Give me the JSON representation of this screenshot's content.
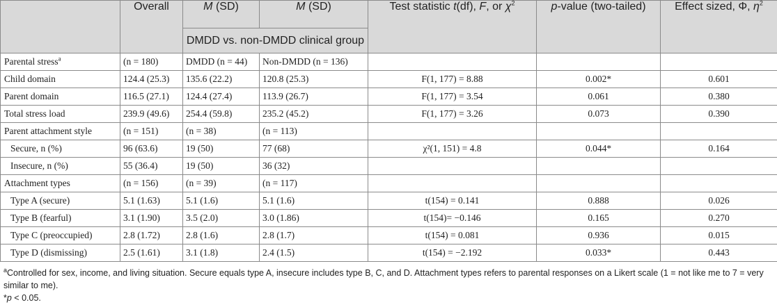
{
  "header": {
    "overall": "Overall",
    "m_sd_1_m": "M",
    "m_sd_1_rest": " (SD)",
    "m_sd_2_m": "M",
    "m_sd_2_rest": " (SD)",
    "test_stat_a": "Test statistic ",
    "test_stat_t": "t",
    "test_stat_b": "(df), ",
    "test_stat_f": "F",
    "test_stat_c": ", or ",
    "test_stat_chi": "χ",
    "test_stat_sup": "2",
    "pvalue_p": "p",
    "pvalue_rest": "-value (two-tailed)",
    "effect_a": "Effect sized, Φ, ",
    "effect_eta": "η",
    "effect_sup": "2",
    "group_label": "DMDD vs. non-DMDD clinical group"
  },
  "rows": [
    {
      "label": "Parental stress",
      "label_sup": "a",
      "indent": false,
      "overall": "(n = 180)",
      "dmdd": "DMDD (n = 44)",
      "non": "Non-DMDD (n = 136)",
      "stat": "",
      "p": "",
      "eff": ""
    },
    {
      "label": "Child domain",
      "label_sup": "",
      "indent": false,
      "overall": "124.4 (25.3)",
      "dmdd": "135.6 (22.2)",
      "non": "120.8 (25.3)",
      "stat": "F(1, 177) = 8.88",
      "p": "0.002*",
      "eff": "0.601"
    },
    {
      "label": "Parent domain",
      "label_sup": "",
      "indent": false,
      "overall": "116.5 (27.1)",
      "dmdd": "124.4 (27.4)",
      "non": "113.9 (26.7)",
      "stat": "F(1, 177) = 3.54",
      "p": "0.061",
      "eff": "0.380"
    },
    {
      "label": "Total stress load",
      "label_sup": "",
      "indent": false,
      "overall": "239.9 (49.6)",
      "dmdd": "254.4 (59.8)",
      "non": "235.2 (45.2)",
      "stat": "F(1, 177) = 3.26",
      "p": "0.073",
      "eff": "0.390"
    },
    {
      "label": "Parent attachment style",
      "label_sup": "",
      "indent": false,
      "overall": "(n = 151)",
      "dmdd": "(n = 38)",
      "non": "(n = 113)",
      "stat": "",
      "p": "",
      "eff": ""
    },
    {
      "label": "Secure, n (%)",
      "label_sup": "",
      "indent": true,
      "overall": "96 (63.6)",
      "dmdd": "19 (50)",
      "non": "77 (68)",
      "stat": "χ²(1, 151) = 4.8",
      "p": "0.044*",
      "eff": "0.164"
    },
    {
      "label": "Insecure, n (%)",
      "label_sup": "",
      "indent": true,
      "overall": "55 (36.4)",
      "dmdd": "19 (50)",
      "non": "36 (32)",
      "stat": "",
      "p": "",
      "eff": ""
    },
    {
      "label": "Attachment types",
      "label_sup": "",
      "indent": false,
      "overall": "(n = 156)",
      "dmdd": "(n = 39)",
      "non": "(n = 117)",
      "stat": "",
      "p": "",
      "eff": ""
    },
    {
      "label": "Type A (secure)",
      "label_sup": "",
      "indent": true,
      "overall": "5.1 (1.63)",
      "dmdd": "5.1 (1.6)",
      "non": "5.1 (1.6)",
      "stat": "t(154) = 0.141",
      "p": "0.888",
      "eff": "0.026"
    },
    {
      "label": "Type B (fearful)",
      "label_sup": "",
      "indent": true,
      "overall": "3.1 (1.90)",
      "dmdd": "3.5 (2.0)",
      "non": "3.0 (1.86)",
      "stat": "t(154)= −0.146",
      "p": "0.165",
      "eff": "0.270"
    },
    {
      "label": "Type C (preoccupied)",
      "label_sup": "",
      "indent": true,
      "overall": "2.8 (1.72)",
      "dmdd": "2.8 (1.6)",
      "non": "2.8 (1.7)",
      "stat": "t(154) = 0.081",
      "p": "0.936",
      "eff": "0.015"
    },
    {
      "label": "Type D (dismissing)",
      "label_sup": "",
      "indent": true,
      "overall": "2.5 (1.61)",
      "dmdd": "3.1 (1.8)",
      "non": "2.4 (1.5)",
      "stat": "t(154) = −2.192",
      "p": "0.033*",
      "eff": "0.443"
    }
  ],
  "footnotes": {
    "a_mark": "a",
    "a_text": "Controlled for sex, income, and living situation. Secure equals type A, insecure includes type B, C, and D. Attachment types refers to parental responses on a Likert scale (1 = not like me to 7 = very similar to me).",
    "star_mark": "*",
    "star_p": "p",
    "star_text": " < 0.05."
  }
}
